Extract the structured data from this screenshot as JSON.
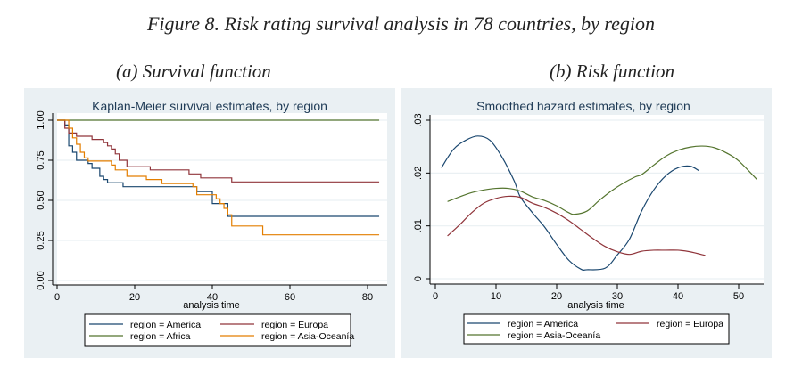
{
  "figure": {
    "title": "Figure 8. Risk rating survival analysis in 78 countries, by region",
    "subtitle_a": "(a) Survival function",
    "subtitle_b": "(b) Risk function"
  },
  "colors": {
    "America": "#1a476f",
    "Europa": "#90353b",
    "Africa": "#55752f",
    "Asia-Oceania_km": "#e37e00",
    "Asia-Oceania_hazard": "#55752f",
    "panel_bg": "#eaf0f3",
    "grid": "#eaf0f3"
  },
  "chart_data": [
    {
      "type": "line",
      "subtype": "step",
      "title": "Kaplan-Meier survival estimates, by region",
      "xlabel": "analysis time",
      "ylabel": "",
      "xlim": [
        0,
        83
      ],
      "ylim": [
        0,
        1
      ],
      "xticks": [
        0,
        20,
        40,
        60,
        80
      ],
      "xtick_labels": [
        "0",
        "20",
        "40",
        "60",
        "80"
      ],
      "yticks": [
        0,
        0.25,
        0.5,
        0.75,
        1.0
      ],
      "ytick_labels": [
        "0.00",
        "0.25",
        "0.50",
        "0.75",
        "1.00"
      ],
      "grid": true,
      "legend_position": "bottom",
      "legend": [
        "region = America",
        "region = Europa",
        "region = Africa",
        "region = Asia-Oceanía"
      ],
      "series": [
        {
          "name": "region = America",
          "color_key": "America",
          "x": [
            0,
            2,
            3,
            4,
            5,
            8,
            9,
            11,
            12,
            13,
            17,
            36,
            40,
            44,
            83
          ],
          "y": [
            1.0,
            0.97,
            0.84,
            0.8,
            0.75,
            0.73,
            0.7,
            0.65,
            0.63,
            0.61,
            0.585,
            0.555,
            0.48,
            0.4,
            0.4
          ]
        },
        {
          "name": "region = Europa",
          "color_key": "Europa",
          "x": [
            0,
            2,
            3,
            5,
            9,
            12,
            13,
            14,
            15,
            16,
            18,
            24,
            34,
            37,
            45,
            83
          ],
          "y": [
            1.0,
            0.95,
            0.92,
            0.9,
            0.88,
            0.86,
            0.84,
            0.82,
            0.79,
            0.75,
            0.71,
            0.69,
            0.665,
            0.64,
            0.615,
            0.615
          ]
        },
        {
          "name": "region = Africa",
          "color_key": "Africa",
          "x": [
            0,
            83
          ],
          "y": [
            1.0,
            1.0
          ]
        },
        {
          "name": "region = Asia-Oceanía",
          "color_key": "Asia-Oceania_km",
          "x": [
            0,
            3,
            4,
            5,
            6,
            7,
            8,
            14,
            15,
            18,
            23,
            27,
            35,
            36,
            41,
            42,
            43,
            44,
            45,
            53,
            83
          ],
          "y": [
            1.0,
            0.95,
            0.89,
            0.85,
            0.8,
            0.765,
            0.745,
            0.72,
            0.69,
            0.65,
            0.63,
            0.605,
            0.585,
            0.535,
            0.51,
            0.48,
            0.45,
            0.41,
            0.34,
            0.285,
            0.285
          ]
        }
      ]
    },
    {
      "type": "line",
      "title": "Smoothed hazard estimates, by region",
      "xlabel": "analysis time",
      "ylabel": "",
      "xlim": [
        0,
        54
      ],
      "ylim": [
        0,
        0.03
      ],
      "xticks": [
        0,
        10,
        20,
        30,
        40,
        50
      ],
      "xtick_labels": [
        "0",
        "10",
        "20",
        "30",
        "40",
        "50"
      ],
      "yticks": [
        0,
        0.01,
        0.02,
        0.03
      ],
      "ytick_labels": [
        "0",
        ".01",
        ".02",
        ".03"
      ],
      "grid": true,
      "legend_position": "bottom",
      "legend": [
        "region = America",
        "region = Europa",
        "region = Asia-Oceanía"
      ],
      "series": [
        {
          "name": "region = America",
          "color_key": "America",
          "x": [
            1,
            3,
            5,
            7,
            9,
            11,
            13,
            14,
            16,
            18,
            20,
            22,
            24,
            25,
            28,
            30,
            32,
            34,
            36,
            38,
            40,
            42,
            43.5
          ],
          "y": [
            0.021,
            0.0245,
            0.0262,
            0.027,
            0.0262,
            0.023,
            0.0185,
            0.0155,
            0.0125,
            0.0098,
            0.0065,
            0.0035,
            0.0018,
            0.0017,
            0.002,
            0.0045,
            0.0075,
            0.0128,
            0.0168,
            0.0195,
            0.021,
            0.0213,
            0.0204
          ]
        },
        {
          "name": "region = Europa",
          "color_key": "Europa",
          "x": [
            2,
            4,
            6,
            8,
            10,
            12,
            14,
            16,
            18,
            20,
            22,
            24,
            26,
            28,
            30,
            32,
            34,
            36,
            38,
            40,
            42,
            44.5
          ],
          "y": [
            0.0081,
            0.0102,
            0.0125,
            0.0143,
            0.0152,
            0.0156,
            0.0154,
            0.0143,
            0.0135,
            0.0124,
            0.011,
            0.0093,
            0.0076,
            0.0061,
            0.0051,
            0.0046,
            0.0052,
            0.0054,
            0.0054,
            0.0054,
            0.0051,
            0.0044
          ]
        },
        {
          "name": "region = Asia-Oceanía",
          "color_key": "Asia-Oceania_hazard",
          "x": [
            2,
            4,
            6,
            8,
            10,
            12,
            14,
            16,
            18,
            20,
            22,
            23,
            25,
            27,
            29,
            31,
            33,
            34,
            36,
            38,
            40,
            42,
            44,
            46,
            48,
            50,
            53
          ],
          "y": [
            0.0146,
            0.0155,
            0.0163,
            0.0168,
            0.0171,
            0.0171,
            0.0166,
            0.0155,
            0.0148,
            0.0138,
            0.0125,
            0.0122,
            0.0128,
            0.0148,
            0.0166,
            0.0181,
            0.0193,
            0.0197,
            0.0215,
            0.0232,
            0.0243,
            0.0249,
            0.0251,
            0.0248,
            0.0238,
            0.0223,
            0.0188
          ]
        }
      ]
    }
  ]
}
